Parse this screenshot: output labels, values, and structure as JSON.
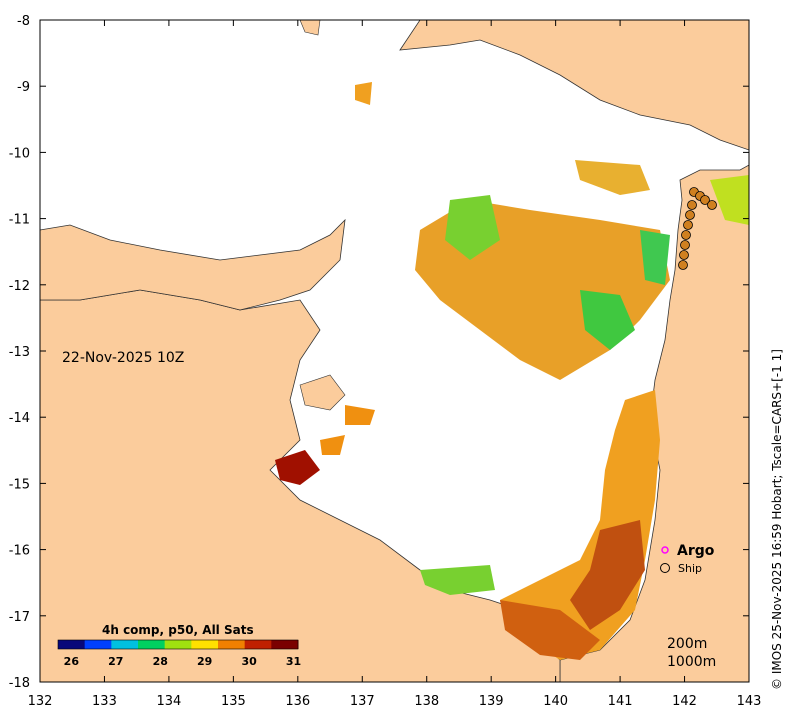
{
  "map": {
    "date_label": "22-Nov-2025 10Z",
    "credit": "© IMOS 25-Nov-2025 16:59 Hobart; Tscale=CARS+[-1 1]",
    "depth_labels": [
      "200m",
      "1000m"
    ],
    "lon_ticks": [
      132,
      133,
      134,
      135,
      136,
      137,
      138,
      139,
      140,
      141,
      142,
      143
    ],
    "lat_ticks": [
      -8,
      -9,
      -10,
      -11,
      -12,
      -13,
      -14,
      -15,
      -16,
      -17,
      -18
    ],
    "extent": {
      "lon": [
        132,
        143
      ],
      "lat": [
        -18,
        -8
      ]
    },
    "colors": {
      "land": "#fbcc9c",
      "water": "#ffffff"
    }
  },
  "colorbar": {
    "title": "4h comp, p50, All Sats",
    "ticks": [
      26,
      27,
      28,
      29,
      30,
      31
    ],
    "range": [
      25.7,
      31.1
    ],
    "colors": [
      "#08087a",
      "#0040ff",
      "#00c0e0",
      "#00d060",
      "#a0e010",
      "#ffe000",
      "#f08000",
      "#c02000",
      "#7a0000"
    ]
  },
  "legend": {
    "argo_label": "Argo",
    "ship_label": "Ship",
    "argo_color": "#ff00ff",
    "ship_color": "#d08020"
  }
}
